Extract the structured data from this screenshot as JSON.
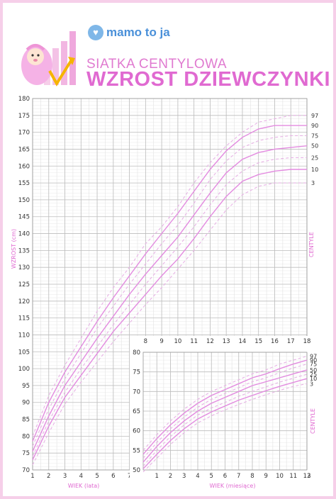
{
  "brand": {
    "name": "mamo to ja",
    "logo_icon": "heart-hands-icon"
  },
  "header": {
    "title_line1": "SIATKA CENTYLOWA",
    "title_line2": "WZROST DZIEWCZYNKI"
  },
  "colors": {
    "accent": "#e06ad1",
    "grid": "#bdbdbd",
    "grid_minor": "#e2e2e2",
    "axis_text": "#333333",
    "border": "#f6cfe9",
    "curve_solid": "#e38be0",
    "curve_dash": "#e7b2e5"
  },
  "chart_data": [
    {
      "type": "line",
      "title": "WZROST DZIEWCZYNKI",
      "xlabel": "WIEK (lata)",
      "ylabel": "WZROST (cm)",
      "right_label": "CENTYLE",
      "xlim": [
        1,
        18
      ],
      "ylim": [
        70,
        180
      ],
      "x_ticks": [
        1,
        2,
        3,
        4,
        5,
        6,
        7,
        8,
        9,
        10,
        11,
        12,
        13,
        14,
        15,
        16,
        17,
        18
      ],
      "y_ticks": [
        70,
        75,
        80,
        85,
        90,
        95,
        100,
        105,
        110,
        115,
        120,
        125,
        130,
        135,
        140,
        145,
        150,
        155,
        160,
        165,
        170,
        175,
        180
      ],
      "x": [
        1,
        2,
        3,
        4,
        5,
        6,
        7,
        8,
        9,
        10,
        11,
        12,
        13,
        14,
        15,
        16,
        17,
        18
      ],
      "series": [
        {
          "name": "97",
          "style": "dash",
          "values": [
            80,
            92,
            101,
            109,
            117,
            124,
            130,
            137,
            142,
            148,
            155,
            161,
            166,
            170,
            173,
            174,
            175,
            175
          ]
        },
        {
          "name": "90",
          "style": "solid",
          "values": [
            78.5,
            90,
            99,
            106.5,
            114,
            121,
            127.5,
            134,
            140,
            146,
            152.5,
            159,
            164.5,
            168.5,
            171,
            172,
            172,
            172
          ]
        },
        {
          "name": "75",
          "style": "dash",
          "values": [
            77,
            88,
            97,
            104.5,
            112,
            118.5,
            125,
            131,
            137,
            142.5,
            149,
            156,
            161.5,
            165.5,
            167.5,
            168.5,
            169,
            169
          ]
        },
        {
          "name": "50",
          "style": "solid",
          "values": [
            75.5,
            86,
            95,
            102,
            109,
            115.5,
            122,
            128,
            133.5,
            139,
            145.5,
            152,
            158,
            162,
            164,
            165,
            165.5,
            166
          ]
        },
        {
          "name": "25",
          "style": "dash",
          "values": [
            74,
            84.5,
            93,
            100,
            106.5,
            113,
            119,
            125,
            130.5,
            136,
            142,
            148.5,
            154.5,
            158.5,
            161,
            162,
            162.5,
            162.5
          ]
        },
        {
          "name": "10",
          "style": "solid",
          "values": [
            73,
            83,
            91.5,
            98,
            104.5,
            111,
            116.5,
            122,
            127.5,
            132.5,
            138.5,
            145,
            151,
            155.5,
            157.5,
            158.5,
            159,
            159
          ]
        },
        {
          "name": "3",
          "style": "dash",
          "values": [
            71.5,
            81,
            89.5,
            96,
            102,
            108,
            113.5,
            119,
            124,
            129.5,
            135,
            141,
            147,
            151.5,
            154,
            155,
            155,
            155
          ]
        }
      ],
      "grid": true,
      "legend": "right"
    },
    {
      "type": "line",
      "xlabel": "WIEK (miesiące)",
      "right_label": "CENTYLE",
      "xlim": [
        0,
        12
      ],
      "ylim": [
        50,
        80
      ],
      "x_ticks": [
        1,
        2,
        3,
        4,
        5,
        6,
        7,
        8,
        9,
        10,
        11,
        12
      ],
      "y_ticks": [
        50,
        55,
        60,
        65,
        70,
        75,
        80
      ],
      "x": [
        0,
        1,
        2,
        3,
        4,
        5,
        6,
        7,
        8,
        9,
        10,
        11,
        12
      ],
      "series": [
        {
          "name": "97",
          "style": "dash",
          "values": [
            55,
            59,
            62.5,
            65.5,
            68,
            70,
            71.5,
            73,
            74.5,
            75.5,
            77,
            78,
            79
          ]
        },
        {
          "name": "90",
          "style": "solid",
          "values": [
            54,
            58,
            61.5,
            64.5,
            67,
            69,
            70.5,
            72,
            73.5,
            74.5,
            75.8,
            77,
            78
          ]
        },
        {
          "name": "75",
          "style": "dash",
          "values": [
            53,
            57,
            60.5,
            63.5,
            66,
            68,
            69.5,
            71,
            72.5,
            73.5,
            74.8,
            76,
            77
          ]
        },
        {
          "name": "50",
          "style": "solid",
          "values": [
            52,
            56,
            59.5,
            62.5,
            65,
            67,
            68.5,
            70,
            71.5,
            72.5,
            73.5,
            74.5,
            75.5
          ]
        },
        {
          "name": "25",
          "style": "dash",
          "values": [
            51,
            55,
            58.5,
            61.5,
            64,
            65.8,
            67.2,
            68.8,
            70,
            71.2,
            72.4,
            73.4,
            74.4
          ]
        },
        {
          "name": "10",
          "style": "solid",
          "values": [
            50.3,
            54,
            57.5,
            60.5,
            63,
            64.8,
            66.3,
            67.8,
            69,
            70.2,
            71.3,
            72.3,
            73.3
          ]
        },
        {
          "name": "3",
          "style": "dash",
          "values": [
            49.5,
            53,
            56.5,
            59.5,
            62,
            63.8,
            65.3,
            66.7,
            68,
            69.2,
            70.3,
            71.3,
            72
          ]
        }
      ],
      "grid": true,
      "legend": "right"
    }
  ]
}
